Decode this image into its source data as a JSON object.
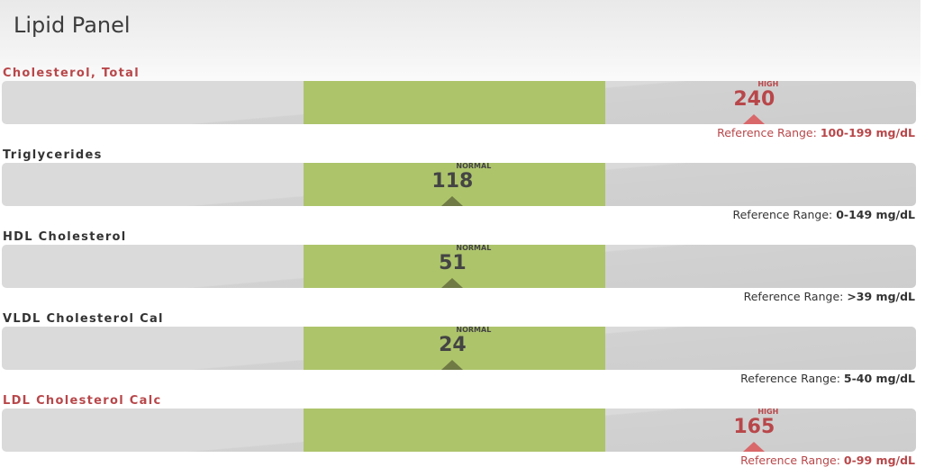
{
  "panel": {
    "title": "Lipid Panel"
  },
  "colors": {
    "high": "#b8474a",
    "normal_band": "#adc46b",
    "track": "#dadada"
  },
  "tests": [
    {
      "name": "Cholesterol, Total",
      "value": "240",
      "flag": "HIGH",
      "status": "high",
      "ref_label": "Reference Range:",
      "ref_value": "100-199 mg/dL",
      "marker_fraction": 0.823
    },
    {
      "name": "Triglycerides",
      "value": "118",
      "flag": "NORMAL",
      "status": "normal",
      "ref_label": "Reference Range:",
      "ref_value": "0-149 mg/dL",
      "marker_fraction": 0.493
    },
    {
      "name": "HDL Cholesterol",
      "value": "51",
      "flag": "NORMAL",
      "status": "normal",
      "ref_label": "Reference Range:",
      "ref_value": ">39 mg/dL",
      "marker_fraction": 0.493
    },
    {
      "name": "VLDL Cholesterol Cal",
      "value": "24",
      "flag": "NORMAL",
      "status": "normal",
      "ref_label": "Reference Range:",
      "ref_value": "5-40 mg/dL",
      "marker_fraction": 0.493
    },
    {
      "name": "LDL Cholesterol Calc",
      "value": "165",
      "flag": "HIGH",
      "status": "high",
      "ref_label": "Reference Range:",
      "ref_value": "0-99 mg/dL",
      "marker_fraction": 0.823
    }
  ]
}
